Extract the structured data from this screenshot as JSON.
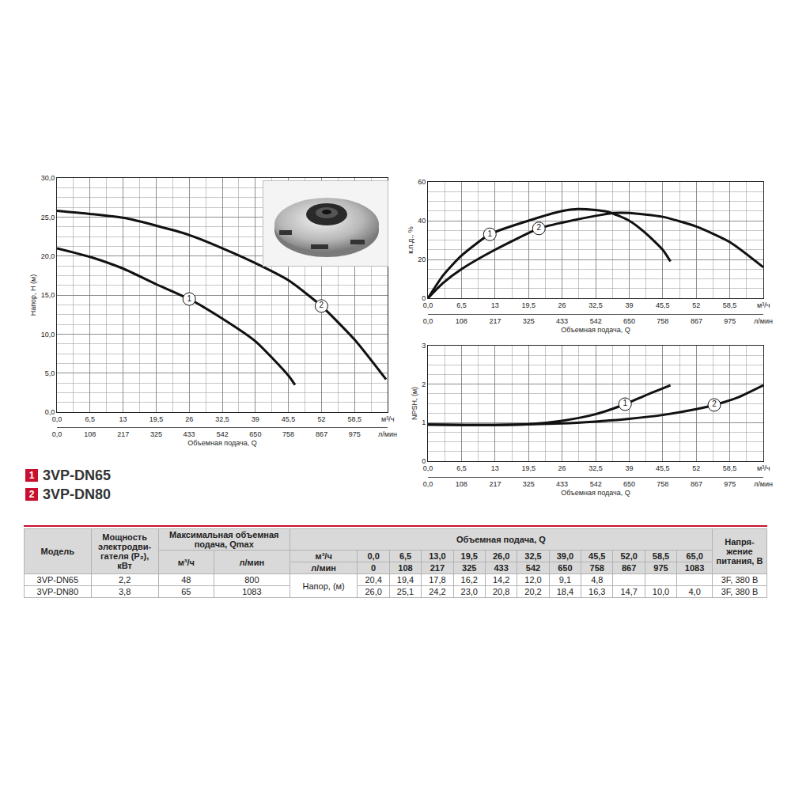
{
  "chart_data": [
    {
      "type": "line",
      "ylabel": "Напор, H (м)",
      "xlabel": "Объемная подача, Q",
      "annotations": [
        "м³/ч",
        "л/мин"
      ],
      "xlim": [
        0,
        65
      ],
      "xticks": [
        {
          "value": 0,
          "label": "0,0"
        },
        {
          "value": 6.5,
          "label": "6,5"
        },
        13,
        {
          "value": 19.5,
          "label": "19,5"
        },
        26,
        {
          "value": 32.5,
          "label": "32,5"
        },
        39,
        {
          "value": 45.5,
          "label": "45,5"
        },
        52,
        {
          "value": 58.5,
          "label": "58,5"
        }
      ],
      "x2lim": [
        0,
        1083
      ],
      "x2ticks": [
        {
          "value": 0,
          "label": "0,0"
        },
        108,
        217,
        325,
        433,
        542,
        650,
        758,
        867,
        975
      ],
      "ylim": [
        0,
        30
      ],
      "yticks": [
        {
          "value": 0,
          "label": "0,0"
        },
        {
          "value": 5,
          "label": "5,0"
        },
        {
          "value": 10,
          "label": "10,0"
        },
        {
          "value": 15,
          "label": "15,0"
        },
        {
          "value": 20,
          "label": "20,0"
        },
        {
          "value": 25,
          "label": "25,0"
        },
        {
          "value": 30,
          "label": "30,0"
        }
      ],
      "grid": true,
      "legend": "below",
      "series": [
        {
          "name": "3VP-DN65",
          "label": "1",
          "label_x": 26,
          "color": "#111111",
          "line_style": "solid",
          "x": [
            0,
            6.5,
            13,
            19.5,
            26,
            32.5,
            39,
            45.5,
            46.8
          ],
          "values": [
            21.0,
            19.9,
            18.4,
            16.4,
            14.5,
            12.0,
            9.1,
            4.7,
            3.5
          ]
        },
        {
          "name": "3VP-DN80",
          "label": "2",
          "label_x": 52,
          "color": "#111111",
          "line_style": "solid",
          "x": [
            0,
            6.5,
            13,
            19.5,
            26,
            32.5,
            39,
            45.5,
            52,
            58.5,
            64.7
          ],
          "values": [
            25.8,
            25.4,
            24.9,
            23.9,
            22.7,
            21.0,
            19.1,
            16.9,
            13.6,
            9.3,
            4.2
          ]
        }
      ]
    },
    {
      "type": "line",
      "ylabel": "к.п.д., %",
      "xlabel": "Объемная подача, Q",
      "annotations": [
        "м³/ч",
        "л/мин"
      ],
      "xlim": [
        0,
        65
      ],
      "xticks": [
        {
          "value": 0,
          "label": "0,0"
        },
        {
          "value": 6.5,
          "label": "6,5"
        },
        13,
        {
          "value": 19.5,
          "label": "19,5"
        },
        26,
        {
          "value": 32.5,
          "label": "32,5"
        },
        39,
        {
          "value": 45.5,
          "label": "45,5"
        },
        52,
        {
          "value": 58.5,
          "label": "58,5"
        }
      ],
      "x2lim": [
        0,
        1083
      ],
      "x2ticks": [
        {
          "value": 0,
          "label": "0,0"
        },
        108,
        217,
        325,
        433,
        542,
        650,
        758,
        867,
        975
      ],
      "ylim": [
        0,
        60
      ],
      "yticks": [
        0,
        20,
        40,
        60
      ],
      "grid": true,
      "series": [
        {
          "label": "1",
          "label_x": 12,
          "color": "#111111",
          "line_style": "solid",
          "x": [
            0,
            3,
            6.5,
            12,
            19.5,
            26,
            29,
            32.5,
            35,
            39,
            42,
            45.5,
            47
          ],
          "values": [
            0,
            12,
            22,
            33,
            40,
            45,
            46,
            45.5,
            44.5,
            40,
            34,
            25,
            19
          ]
        },
        {
          "label": "2",
          "label_x": 21.5,
          "color": "#111111",
          "line_style": "solid",
          "x": [
            0,
            3,
            6.5,
            13,
            21.5,
            26,
            32.5,
            36,
            39,
            45.5,
            52,
            58.5,
            65
          ],
          "values": [
            0,
            8,
            15,
            25,
            36,
            39,
            42.5,
            44,
            44,
            42,
            37,
            29,
            16
          ]
        }
      ]
    },
    {
      "type": "line",
      "ylabel": "NPSH, (м)",
      "xlabel": "Объемная подача, Q",
      "annotations": [
        "м³/ч",
        "л/мин"
      ],
      "xlim": [
        0,
        65
      ],
      "xticks": [
        {
          "value": 0,
          "label": "0,0"
        },
        {
          "value": 6.5,
          "label": "6,5"
        },
        13,
        {
          "value": 19.5,
          "label": "19,5"
        },
        26,
        {
          "value": 32.5,
          "label": "32,5"
        },
        39,
        {
          "value": 45.5,
          "label": "45,5"
        },
        52,
        {
          "value": 58.5,
          "label": "58,5"
        }
      ],
      "x2lim": [
        0,
        1083
      ],
      "x2ticks": [
        {
          "value": 0,
          "label": "0,0"
        },
        108,
        217,
        325,
        433,
        542,
        650,
        758,
        867,
        975
      ],
      "ylim": [
        0,
        3
      ],
      "yticks": [
        0,
        1,
        2,
        3
      ],
      "grid": true,
      "series": [
        {
          "label": "1",
          "label_x": 38.2,
          "color": "#111111",
          "line_style": "solid",
          "x": [
            0,
            6.5,
            13,
            19.5,
            26,
            32.5,
            38.2,
            42,
            47
          ],
          "values": [
            0.95,
            0.94,
            0.94,
            0.96,
            1.05,
            1.22,
            1.48,
            1.7,
            1.97
          ]
        },
        {
          "label": "2",
          "label_x": 55.5,
          "color": "#111111",
          "line_style": "solid",
          "x": [
            0,
            13,
            26,
            32.5,
            39,
            45.5,
            52,
            55.5,
            60,
            65
          ],
          "values": [
            0.95,
            0.94,
            0.98,
            1.03,
            1.1,
            1.2,
            1.35,
            1.46,
            1.65,
            1.97
          ]
        }
      ]
    }
  ],
  "legend_color": "#c8102e",
  "table": {
    "header": {
      "model": "Модель",
      "power": "Мощность электродви-гателя (P₂), кВт",
      "qmax": "Максимальная объемная подача, Qmax",
      "qmax_units": [
        "м³/ч",
        "л/мин"
      ],
      "flow": "Объемная подача, Q",
      "voltage": "Напря-жение питания, В",
      "flow_rows": [
        {
          "unit": "м³/ч",
          "values": [
            "0,0",
            "6,5",
            "13,0",
            "19,5",
            "26,0",
            "32,5",
            "39,0",
            "45,5",
            "52,0",
            "58,5",
            "65,0"
          ]
        },
        {
          "unit": "л/мин",
          "values": [
            "0",
            "108",
            "217",
            "325",
            "433",
            "542",
            "650",
            "758",
            "867",
            "975",
            "1083"
          ]
        }
      ]
    },
    "row_label": "Напор, (м)",
    "rows": [
      {
        "model": "3VP-DN65",
        "power": "2,2",
        "qmax": [
          "48",
          "800"
        ],
        "head": [
          "20,4",
          "19,4",
          "17,8",
          "16,2",
          "14,2",
          "12,0",
          "9,1",
          "4,8",
          null,
          null,
          null
        ],
        "voltage": "3F, 380 В"
      },
      {
        "model": "3VP-DN80",
        "power": "3,8",
        "qmax": [
          "65",
          "1083"
        ],
        "head": [
          "26,0",
          "25,1",
          "24,2",
          "23,0",
          "20,8",
          "20,2",
          "18,4",
          "16,3",
          "14,7",
          "10,0",
          "4,0"
        ],
        "voltage": "3F, 380 В"
      }
    ]
  }
}
